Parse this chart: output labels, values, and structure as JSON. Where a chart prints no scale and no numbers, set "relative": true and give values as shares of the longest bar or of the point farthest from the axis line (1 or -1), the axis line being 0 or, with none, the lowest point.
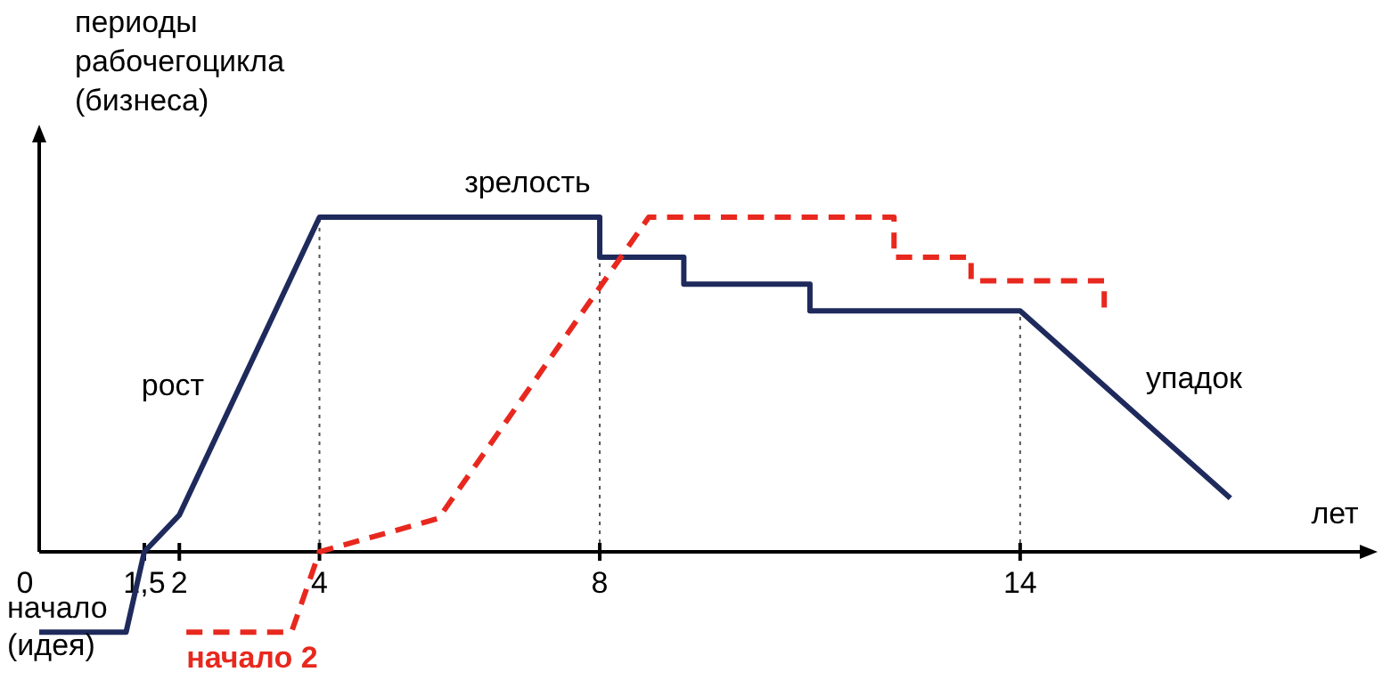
{
  "chart_data": {
    "type": "line",
    "relative": true,
    "ylabel": "периоды\nрабочегоцикла\n(бизнеса)",
    "xlabel": "лет",
    "xlim": [
      0,
      19
    ],
    "xticks": [
      0,
      {
        "value": 1.5,
        "label": "1,5"
      },
      2,
      4,
      8,
      14
    ],
    "tick_labels": "x",
    "marker": "none",
    "series": [
      {
        "color": "#1f2a5c",
        "line_style": "solid",
        "x": [
          0,
          1.24,
          1.5,
          2,
          4,
          8,
          8,
          9.2,
          9.2,
          11,
          11,
          14,
          17
        ],
        "values": [
          -0.24,
          -0.24,
          0,
          0.11,
          1,
          1,
          0.88,
          0.88,
          0.8,
          0.8,
          0.72,
          0.72,
          0.16
        ]
      },
      {
        "name": "начало 2",
        "color": "#e8281e",
        "line_style": "dashed",
        "x": [
          2.1,
          3.6,
          4,
          5.7,
          8.7,
          12.2,
          12.2,
          13.3,
          13.3,
          15.2,
          15.2
        ],
        "values": [
          -0.24,
          -0.24,
          0,
          0.1,
          1,
          1,
          0.88,
          0.88,
          0.81,
          0.81,
          0.73
        ]
      }
    ],
    "ref_lines": [
      {
        "axis": "x",
        "value": 4,
        "line_style": "dotted",
        "color": "#555555"
      },
      {
        "axis": "x",
        "value": 8,
        "line_style": "dotted",
        "color": "#555555"
      },
      {
        "axis": "x",
        "value": 14,
        "line_style": "dotted",
        "color": "#555555"
      }
    ],
    "annotations": [
      "начало\n(идея)",
      "рост",
      "зрелость",
      "упадок"
    ]
  }
}
